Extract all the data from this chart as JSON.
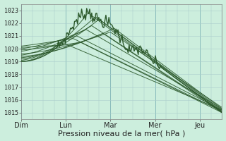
{
  "bg_color": "#cceedd",
  "grid_color": "#aacccc",
  "line_color": "#2d5a2d",
  "xlabel": "Pression niveau de la mer( hPa )",
  "xlabel_fontsize": 8,
  "ylim": [
    1014.5,
    1023.5
  ],
  "yticks": [
    1015,
    1016,
    1017,
    1018,
    1019,
    1020,
    1021,
    1022,
    1023
  ],
  "xtick_labels": [
    "Dim",
    "Lun",
    "Mar",
    "Mer",
    "Jeu"
  ],
  "xtick_positions": [
    0,
    24,
    48,
    72,
    96
  ],
  "total_hours": 108,
  "n_points": 200
}
